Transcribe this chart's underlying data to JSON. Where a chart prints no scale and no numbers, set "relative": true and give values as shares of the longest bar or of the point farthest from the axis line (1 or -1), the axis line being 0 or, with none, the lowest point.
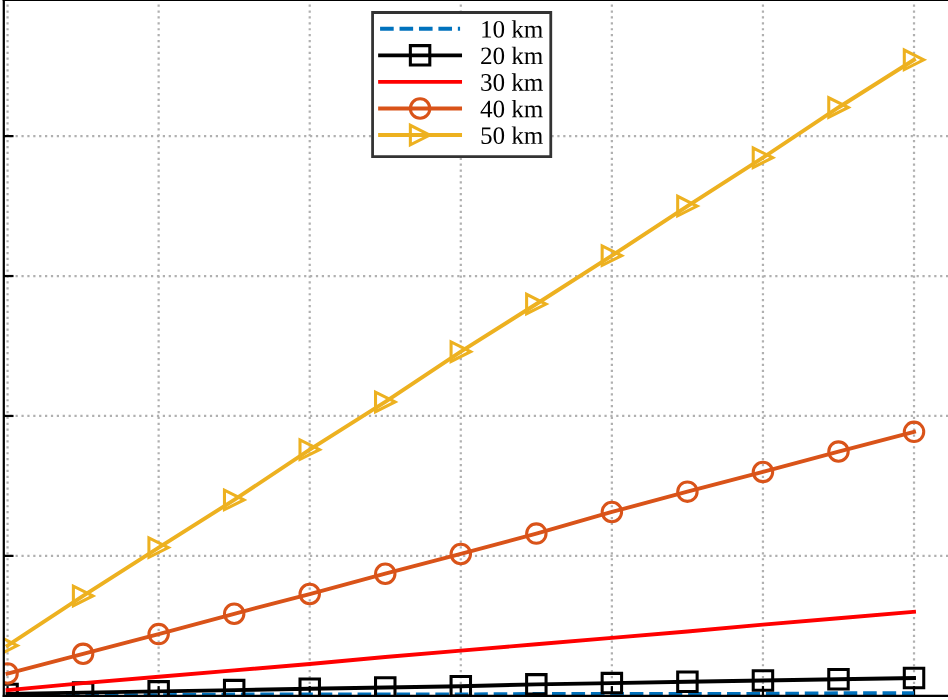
{
  "chart_data": {
    "type": "line",
    "relative": true,
    "categories": [
      null,
      null,
      null,
      null,
      null,
      null,
      null,
      null,
      null,
      null,
      null,
      null,
      null
    ],
    "grid": true,
    "legend": "top",
    "series": [
      {
        "name": "10 km",
        "color": "#0072bd",
        "line_style": "dashed",
        "marker": "none",
        "values": [
          0.001,
          0.001,
          0.001,
          0.002,
          0.002,
          0.002,
          0.002,
          0.003,
          0.003,
          0.003,
          0.003,
          0.004,
          0.004
        ]
      },
      {
        "name": "20 km",
        "color": "#000000",
        "line_style": "solid",
        "marker": "square",
        "values": [
          0.003,
          0.005,
          0.007,
          0.009,
          0.011,
          0.013,
          0.015,
          0.018,
          0.02,
          0.022,
          0.024,
          0.026,
          0.028
        ]
      },
      {
        "name": "30 km",
        "color": "#ff0000",
        "line_style": "solid",
        "marker": "none",
        "values": [
          0.009,
          0.02,
          0.03,
          0.04,
          0.05,
          0.061,
          0.071,
          0.081,
          0.091,
          0.101,
          0.112,
          0.122,
          0.132
        ]
      },
      {
        "name": "40 km",
        "color": "#d95319",
        "line_style": "solid",
        "marker": "circle",
        "values": [
          0.035,
          0.066,
          0.097,
          0.129,
          0.16,
          0.192,
          0.223,
          0.255,
          0.289,
          0.321,
          0.352,
          0.384,
          0.415
        ]
      },
      {
        "name": "50 km",
        "color": "#edb120",
        "line_style": "solid",
        "marker": "triangle",
        "values": [
          0.079,
          0.157,
          0.233,
          0.308,
          0.387,
          0.462,
          0.541,
          0.616,
          0.692,
          0.77,
          0.846,
          0.925,
          1
        ]
      }
    ]
  }
}
